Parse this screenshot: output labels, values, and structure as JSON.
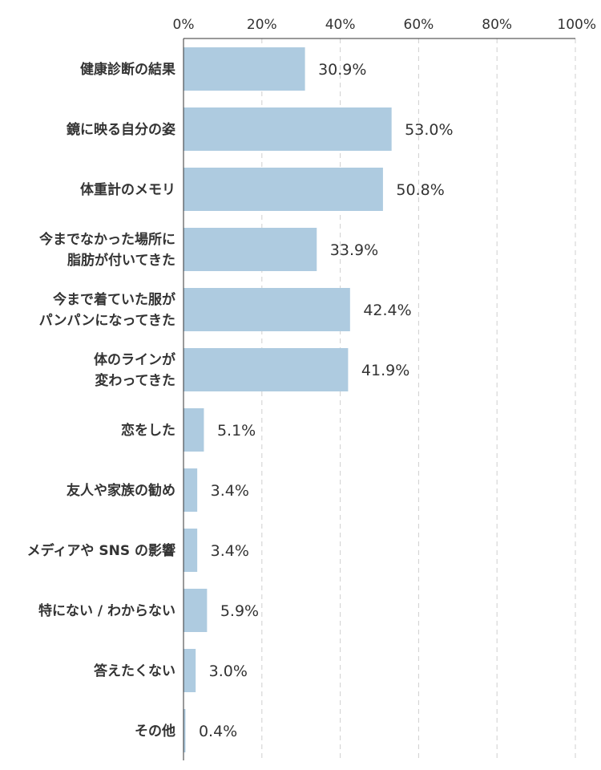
{
  "chart_data": {
    "type": "bar",
    "orientation": "horizontal",
    "xlim": [
      0,
      100
    ],
    "x_ticks": [
      "0%",
      "20%",
      "40%",
      "60%",
      "80%",
      "100%"
    ],
    "x_tick_values": [
      0,
      20,
      40,
      60,
      80,
      100
    ],
    "grid": true,
    "bar_color": "#aecbe0",
    "categories": [
      [
        "健康診断の結果"
      ],
      [
        "鏡に映る自分の姿"
      ],
      [
        "体重計のメモリ"
      ],
      [
        "今までなかった場所に",
        "脂肪が付いてきた"
      ],
      [
        "今まで着ていた服が",
        "パンパンになってきた"
      ],
      [
        "体のラインが",
        "変わってきた"
      ],
      [
        "恋をした"
      ],
      [
        "友人や家族の勧め"
      ],
      [
        "メディアや SNS の影響"
      ],
      [
        "特にない / わからない"
      ],
      [
        "答えたくない"
      ],
      [
        "その他"
      ]
    ],
    "values": [
      30.9,
      53.0,
      50.8,
      33.9,
      42.4,
      41.9,
      5.1,
      3.4,
      3.4,
      5.9,
      3.0,
      0.4
    ],
    "value_labels": [
      "30.9%",
      "53.0%",
      "50.8%",
      "33.9%",
      "42.4%",
      "41.9%",
      "5.1%",
      "3.4%",
      "3.4%",
      "5.9%",
      "3.0%",
      "0.4%"
    ]
  }
}
